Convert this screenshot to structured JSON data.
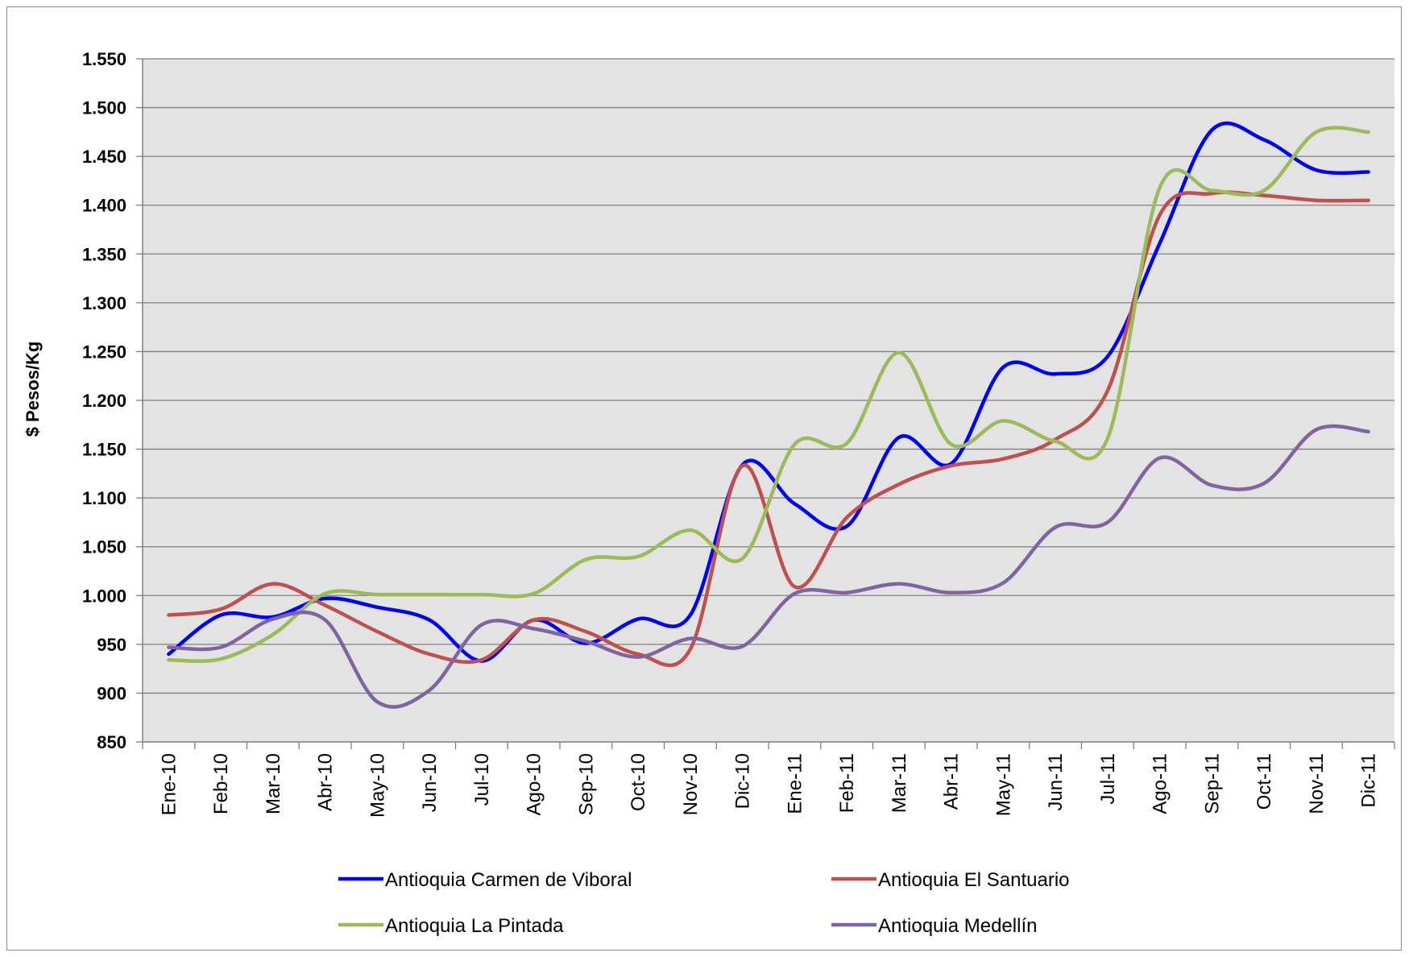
{
  "chart_data": {
    "type": "line",
    "title": "",
    "xlabel": "",
    "ylabel": "$ Pesos/Kg",
    "ylim": [
      850,
      1550
    ],
    "ytick_step": 50,
    "ytick_labels": [
      "850",
      "900",
      "950",
      "1.000",
      "1.050",
      "1.100",
      "1.150",
      "1.200",
      "1.250",
      "1.300",
      "1.350",
      "1.400",
      "1.450",
      "1.500",
      "1.550"
    ],
    "categories": [
      "Ene-10",
      "Feb-10",
      "Mar-10",
      "Abr-10",
      "May-10",
      "Jun-10",
      "Jul-10",
      "Ago-10",
      "Sep-10",
      "Oct-10",
      "Nov-10",
      "Dic-10",
      "Ene-11",
      "Feb-11",
      "Mar-11",
      "Abr-11",
      "May-11",
      "Jun-11",
      "Jul-11",
      "Ago-11",
      "Sep-11",
      "Oct-11",
      "Nov-11",
      "Dic-11"
    ],
    "grid": true,
    "plot_background": "#e3e3e3",
    "legend_position": "bottom",
    "series": [
      {
        "name": "Antioquia Carmen de Viboral",
        "color": "#0000ff",
        "values": [
          940,
          980,
          978,
          997,
          988,
          975,
          933,
          975,
          951,
          976,
          980,
          1134,
          1094,
          1071,
          1162,
          1135,
          1234,
          1227,
          1245,
          1361,
          1477,
          1467,
          1436,
          1434
        ]
      },
      {
        "name": "Antioquia El Santuario",
        "color": "#c0504d",
        "values": [
          980,
          986,
          1012,
          990,
          963,
          940,
          934,
          975,
          963,
          940,
          945,
          1133,
          1009,
          1080,
          1114,
          1133,
          1140,
          1160,
          1210,
          1390,
          1412,
          1410,
          1405,
          1405
        ]
      },
      {
        "name": "Antioquia La Pintada",
        "color": "#9bbb59",
        "values": [
          934,
          935,
          960,
          1002,
          1001,
          1001,
          1001,
          1002,
          1037,
          1040,
          1067,
          1038,
          1155,
          1156,
          1249,
          1155,
          1179,
          1158,
          1161,
          1418,
          1415,
          1415,
          1475,
          1475
        ]
      },
      {
        "name": "Antioquia Medellín",
        "color": "#8064a2",
        "values": [
          947,
          947,
          976,
          975,
          891,
          903,
          970,
          966,
          953,
          937,
          956,
          948,
          1002,
          1003,
          1012,
          1003,
          1013,
          1070,
          1075,
          1141,
          1113,
          1115,
          1170,
          1168
        ]
      }
    ]
  }
}
